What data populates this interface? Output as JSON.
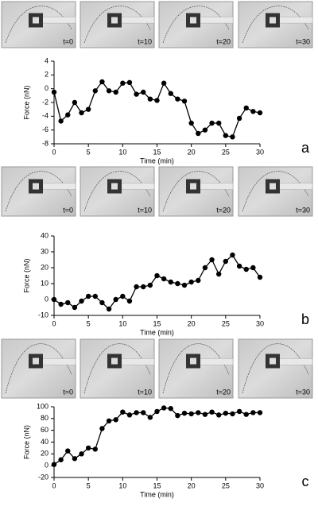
{
  "chart_data": [
    {
      "type": "line",
      "panel_label": "a",
      "frame_labels": [
        "t=0",
        "t=10",
        "t=20",
        "t=30"
      ],
      "xlabel": "Time (min)",
      "ylabel": "Force (nN)",
      "color": "#000000",
      "x": [
        0,
        1,
        2,
        3,
        4,
        5,
        6,
        7,
        8,
        9,
        10,
        11,
        12,
        13,
        14,
        15,
        16,
        17,
        18,
        19,
        20,
        21,
        22,
        23,
        24,
        25,
        26,
        27,
        28,
        29,
        30
      ],
      "values": [
        -0.5,
        -4.7,
        -3.8,
        -2,
        -3.5,
        -3,
        -0.3,
        1,
        -0.3,
        -0.5,
        0.8,
        0.9,
        -0.8,
        -0.5,
        -1.5,
        -1.7,
        0.8,
        -0.7,
        -1.5,
        -1.8,
        -5,
        -6.5,
        -6,
        -5,
        -5,
        -6.8,
        -7,
        -4.3,
        -2.8,
        -3.3,
        -3.5
      ],
      "xlim": [
        0,
        30
      ],
      "xticks": [
        0,
        5,
        10,
        15,
        20,
        25,
        30
      ],
      "ylim": [
        -8,
        4
      ],
      "yticks": [
        -8,
        -6,
        -4,
        -2,
        0,
        2,
        4
      ]
    },
    {
      "type": "line",
      "panel_label": "b",
      "frame_labels": [
        "t=0",
        "t=10",
        "t=20",
        "t=30"
      ],
      "xlabel": "Time (min)",
      "ylabel": "Force (nN)",
      "color": "#000000",
      "x": [
        0,
        1,
        2,
        3,
        4,
        5,
        6,
        7,
        8,
        9,
        10,
        11,
        12,
        13,
        14,
        15,
        16,
        17,
        18,
        19,
        20,
        21,
        22,
        23,
        24,
        25,
        26,
        27,
        28,
        29,
        30
      ],
      "values": [
        0,
        -3,
        -2,
        -5,
        -1,
        2,
        2,
        -2,
        -6,
        0,
        2,
        -1,
        8,
        8,
        9,
        15,
        13,
        11,
        10,
        9,
        11,
        12,
        20,
        25,
        16,
        24,
        28,
        21,
        19,
        20,
        14
      ],
      "xlim": [
        0,
        30
      ],
      "xticks": [
        0,
        5,
        10,
        15,
        20,
        25,
        30
      ],
      "ylim": [
        -10,
        40
      ],
      "yticks": [
        -10,
        0,
        10,
        20,
        30,
        40
      ]
    },
    {
      "type": "line",
      "panel_label": "c",
      "frame_labels": [
        "t=0",
        "t=10",
        "t=20",
        "t=30"
      ],
      "xlabel": "Time (min)",
      "ylabel": "Force (nN)",
      "color": "#000000",
      "x": [
        0,
        1,
        2,
        3,
        4,
        5,
        6,
        7,
        8,
        9,
        10,
        11,
        12,
        13,
        14,
        15,
        16,
        17,
        18,
        19,
        20,
        21,
        22,
        23,
        24,
        25,
        26,
        27,
        28,
        29,
        30
      ],
      "values": [
        2,
        10,
        25,
        12,
        20,
        30,
        28,
        63,
        76,
        78,
        91,
        86,
        90,
        90,
        82,
        92,
        98,
        97,
        85,
        89,
        88,
        90,
        87,
        91,
        86,
        89,
        88,
        92,
        87,
        90,
        90
      ],
      "xlim": [
        0,
        30
      ],
      "xticks": [
        0,
        5,
        10,
        15,
        20,
        25,
        30
      ],
      "ylim": [
        -20,
        100
      ],
      "yticks": [
        -20,
        0,
        20,
        40,
        60,
        80,
        100
      ]
    }
  ]
}
